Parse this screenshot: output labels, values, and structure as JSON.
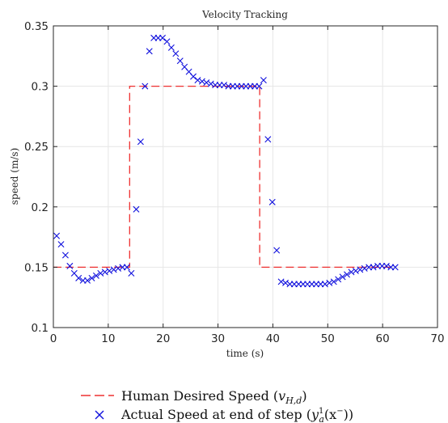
{
  "chart_data": {
    "type": "line",
    "title": "Velocity Tracking",
    "xlabel": "time (s)",
    "ylabel": "speed (m/s)",
    "xlim": [
      0,
      70
    ],
    "ylim": [
      0.1,
      0.35
    ],
    "xticks": [
      0,
      10,
      20,
      30,
      40,
      50,
      60,
      70
    ],
    "xtick_labels": [
      "0",
      "10",
      "20",
      "30",
      "40",
      "50",
      "60",
      "70"
    ],
    "yticks": [
      0.1,
      0.15,
      0.2,
      0.25,
      0.3,
      0.35
    ],
    "ytick_labels": [
      "0.1",
      "0.15",
      "0.2",
      "0.25",
      "0.3",
      "0.35"
    ],
    "grid": true,
    "legend_position": "bottom",
    "colors": {
      "desired": "#ee3030",
      "actual": "#1010dd",
      "grid": "#e6e6e6",
      "axis": "#262626"
    },
    "series": [
      {
        "name": "Human Desired Speed",
        "style": "dashed-line",
        "x": [
          0,
          13.9,
          13.9,
          37.6,
          37.6,
          62
        ],
        "y": [
          0.15,
          0.15,
          0.3,
          0.3,
          0.15,
          0.15
        ]
      },
      {
        "name": "Actual Speed at end of step",
        "style": "x-marker",
        "x": [
          0.6,
          1.4,
          2.2,
          3.0,
          3.8,
          4.6,
          5.4,
          6.2,
          7.0,
          7.8,
          8.6,
          9.4,
          10.2,
          11.0,
          11.8,
          12.6,
          13.4,
          14.2,
          15.1,
          15.9,
          16.7,
          17.5,
          18.3,
          19.1,
          19.9,
          20.7,
          21.5,
          22.3,
          23.1,
          23.9,
          24.7,
          25.5,
          26.3,
          27.1,
          27.9,
          28.7,
          29.5,
          30.3,
          31.1,
          31.9,
          32.7,
          33.5,
          34.3,
          35.1,
          35.9,
          36.7,
          37.5,
          38.3,
          39.1,
          39.9,
          40.7,
          41.5,
          42.3,
          43.1,
          43.9,
          44.7,
          45.5,
          46.3,
          47.1,
          47.9,
          48.7,
          49.5,
          50.3,
          51.1,
          51.9,
          52.7,
          53.5,
          54.3,
          55.1,
          55.9,
          56.7,
          57.5,
          58.3,
          59.1,
          59.9,
          60.7,
          61.5,
          62.3
        ],
        "y": [
          0.176,
          0.169,
          0.16,
          0.151,
          0.145,
          0.141,
          0.139,
          0.139,
          0.141,
          0.143,
          0.145,
          0.146,
          0.147,
          0.148,
          0.149,
          0.15,
          0.15,
          0.145,
          0.198,
          0.254,
          0.3,
          0.329,
          0.34,
          0.34,
          0.34,
          0.337,
          0.332,
          0.327,
          0.321,
          0.316,
          0.312,
          0.308,
          0.305,
          0.304,
          0.303,
          0.302,
          0.301,
          0.301,
          0.301,
          0.3,
          0.3,
          0.3,
          0.3,
          0.3,
          0.3,
          0.3,
          0.3,
          0.305,
          0.256,
          0.204,
          0.164,
          0.138,
          0.137,
          0.136,
          0.136,
          0.136,
          0.136,
          0.136,
          0.136,
          0.136,
          0.136,
          0.136,
          0.137,
          0.138,
          0.14,
          0.142,
          0.144,
          0.146,
          0.147,
          0.148,
          0.149,
          0.15,
          0.15,
          0.151,
          0.151,
          0.151,
          0.15,
          0.15
        ]
      }
    ]
  },
  "legend": {
    "desired_text": "Human Desired Speed (",
    "desired_math": "v",
    "desired_sub": "H,d",
    "desired_close": ")",
    "actual_text": "Actual Speed at end of step (",
    "actual_math": "y",
    "actual_sup": "1",
    "actual_sub": "a",
    "actual_arg": "(x",
    "actual_arg_sup": "−",
    "actual_close": "))"
  }
}
